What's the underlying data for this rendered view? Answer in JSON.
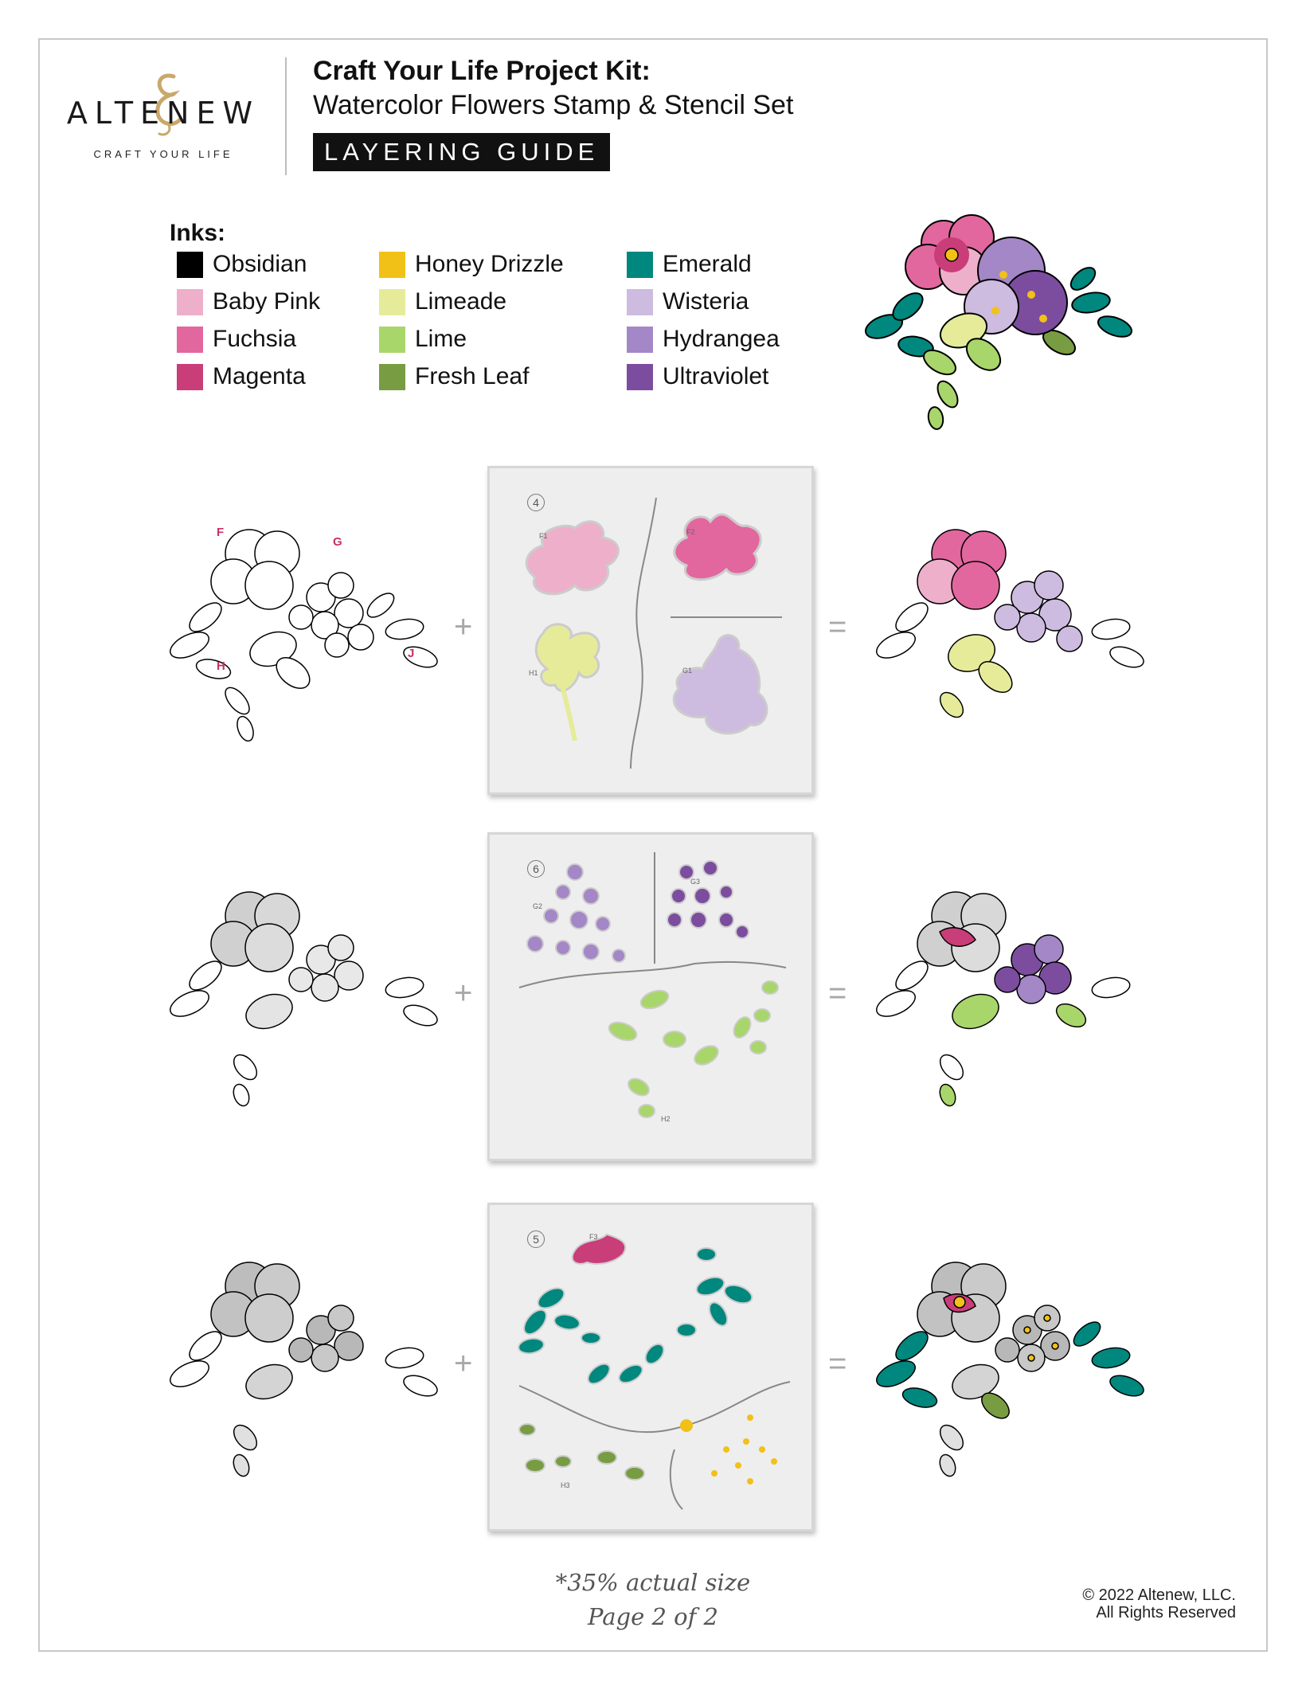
{
  "brand": {
    "name": "ALTENEW",
    "tagline": "CRAFT YOUR LIFE",
    "colors": {
      "gold": "#c9a86a"
    }
  },
  "header": {
    "title": "Craft Your Life Project Kit:",
    "subtitle": "Watercolor Flowers Stamp & Stencil Set",
    "badge": "LAYERING GUIDE"
  },
  "inks": {
    "title": "Inks:",
    "items": [
      {
        "name": "Obsidian",
        "color": "#000000"
      },
      {
        "name": "Baby Pink",
        "color": "#eeafcb"
      },
      {
        "name": "Fuchsia",
        "color": "#e2679e"
      },
      {
        "name": "Magenta",
        "color": "#c93d78"
      },
      {
        "name": "Honey Drizzle",
        "color": "#f2c117"
      },
      {
        "name": "Limeade",
        "color": "#e6eb9a"
      },
      {
        "name": "Lime",
        "color": "#a9d66a"
      },
      {
        "name": "Fresh Leaf",
        "color": "#789c42"
      },
      {
        "name": "Emerald",
        "color": "#00877e"
      },
      {
        "name": "Wisteria",
        "color": "#cdbbe0"
      },
      {
        "name": "Hydrangea",
        "color": "#a487c6"
      },
      {
        "name": "Ultraviolet",
        "color": "#7c4d9e"
      }
    ]
  },
  "operators": {
    "plus": "+",
    "equals": "="
  },
  "rows": [
    {
      "stencil_number": "4",
      "stamp_labels": [
        "F",
        "G",
        "H",
        "J"
      ],
      "stencil_labels": [
        "F1",
        "F2",
        "H1",
        "G1"
      ]
    },
    {
      "stencil_number": "6",
      "stencil_labels": [
        "G2",
        "G3",
        "H2"
      ]
    },
    {
      "stencil_number": "5",
      "stencil_labels": [
        "F3",
        "H3"
      ]
    }
  ],
  "footer": {
    "scale_note": "*35% actual size",
    "page": "Page 2 of 2",
    "copyright": "© 2022 Altenew, LLC.",
    "rights": "All Rights Reserved"
  }
}
